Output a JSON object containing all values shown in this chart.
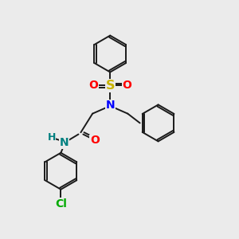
{
  "bg_color": "#ebebeb",
  "bond_color": "#1a1a1a",
  "bond_width": 1.4,
  "atom_colors": {
    "S": "#c8b400",
    "O": "#ff0000",
    "N_blue": "#0000ff",
    "N_teal": "#008080",
    "Cl": "#00aa00",
    "H": "#008080"
  },
  "font_size": 9.5,
  "fig_size": [
    3.0,
    3.0
  ],
  "dpi": 100
}
